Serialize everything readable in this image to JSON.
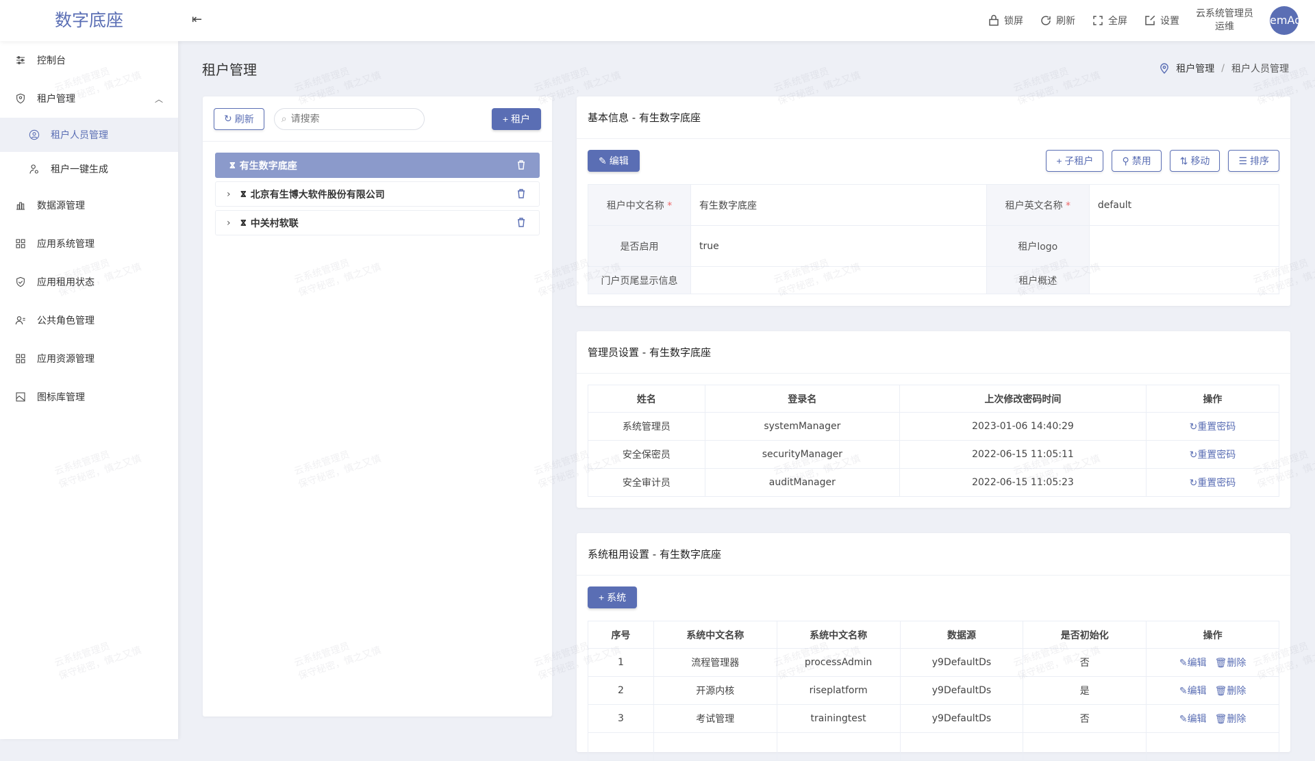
{
  "header": {
    "logo": "数字底座",
    "tools": [
      {
        "icon": "lock-icon",
        "label": "锁屏"
      },
      {
        "icon": "refresh-icon",
        "label": "刷新"
      },
      {
        "icon": "fullscreen-icon",
        "label": "全屏"
      },
      {
        "icon": "edit-square-icon",
        "label": "设置"
      }
    ],
    "user_name": "云系统管理员",
    "user_role": "运维",
    "avatar": "emAd"
  },
  "sidebar": {
    "items": [
      {
        "label": "控制台",
        "icon": "sliders-icon"
      },
      {
        "label": "租户管理",
        "icon": "shield-user-icon",
        "expanded": true
      },
      {
        "label": "租户人员管理",
        "icon": "user-circle-icon",
        "sub": true,
        "active": true
      },
      {
        "label": "租户一键生成",
        "icon": "user-gear-icon",
        "sub": true
      },
      {
        "label": "数据源管理",
        "icon": "chart-bar-icon"
      },
      {
        "label": "应用系统管理",
        "icon": "grid-icon"
      },
      {
        "label": "应用租用状态",
        "icon": "shield-check-icon"
      },
      {
        "label": "公共角色管理",
        "icon": "users-icon"
      },
      {
        "label": "应用资源管理",
        "icon": "grid-icon"
      },
      {
        "label": "图标库管理",
        "icon": "image-icon"
      }
    ]
  },
  "page": {
    "title": "租户管理",
    "breadcrumb": [
      "租户管理",
      "租户人员管理"
    ]
  },
  "left": {
    "refresh": "刷新",
    "search_placeholder": "请搜索",
    "add": "+ 租户",
    "tree": [
      {
        "label": "有生数字底座",
        "selected": true
      },
      {
        "label": "北京有生博大软件股份有限公司"
      },
      {
        "label": "中关村软联"
      }
    ]
  },
  "basic": {
    "title": "基本信息 - 有生数字底座",
    "edit": "编辑",
    "buttons": [
      "+ 子租户",
      "禁用",
      "移动",
      "排序"
    ],
    "fields": [
      {
        "k": "租户中文名称",
        "req": "*",
        "v": "有生数字底座",
        "k2": "租户英文名称",
        "req2": "*",
        "v2": "default"
      },
      {
        "k": "是否启用",
        "v": "true",
        "k2": "租户logo",
        "v2": ""
      },
      {
        "k": "门户页尾显示信息",
        "v": "",
        "k2": "租户概述",
        "v2": ""
      }
    ]
  },
  "admin": {
    "title": "管理员设置 - 有生数字底座",
    "columns": [
      "姓名",
      "登录名",
      "上次修改密码时间",
      "操作"
    ],
    "action": "重置密码",
    "rows": [
      [
        "系统管理员",
        "systemManager",
        "2023-01-06 14:40:29"
      ],
      [
        "安全保密员",
        "securityManager",
        "2022-06-15 11:05:11"
      ],
      [
        "安全审计员",
        "auditManager",
        "2022-06-15 11:05:23"
      ]
    ]
  },
  "system": {
    "title": "系统租用设置 - 有生数字底座",
    "add": "+ 系统",
    "columns": [
      "序号",
      "系统中文名称",
      "系统中文名称",
      "数据源",
      "是否初始化",
      "操作"
    ],
    "edit": "编辑",
    "delete": "删除",
    "rows": [
      [
        "1",
        "流程管理器",
        "processAdmin",
        "y9DefaultDs",
        "否"
      ],
      [
        "2",
        "开源内核",
        "riseplatform",
        "y9DefaultDs",
        "是"
      ],
      [
        "3",
        "考试管理",
        "trainingtest",
        "y9DefaultDs",
        "否"
      ]
    ]
  },
  "watermark": [
    "云系统管理员",
    "保守秘密，慎之又慎"
  ],
  "colors": {
    "accent": "#5a6eb4",
    "selected": "#8b9acb",
    "bg": "#eef0f6"
  }
}
